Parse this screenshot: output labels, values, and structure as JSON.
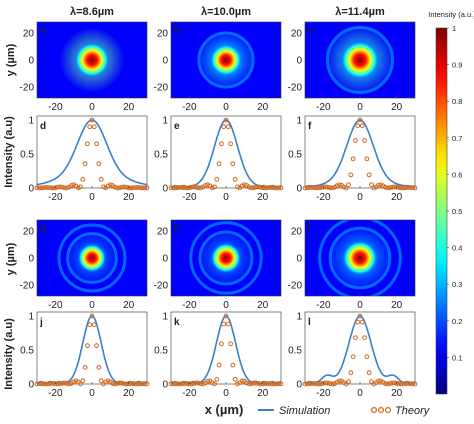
{
  "chart_data": {
    "type": "heatmap",
    "column_titles": [
      "λ=8.6µm",
      "λ=10.0µm",
      "λ=11.4µm"
    ],
    "title_color": "#2f6b2f",
    "image_panels": {
      "ylabel": "y (µm)",
      "y_ticks": [
        20,
        0,
        -20
      ],
      "x_ticks": [
        -20,
        0,
        20
      ],
      "panels": [
        {
          "label": "a",
          "row": 0,
          "col": 0,
          "spot_radius": 5.5,
          "halo": 0.35,
          "rings": 0,
          "peak": 1.0
        },
        {
          "label": "b",
          "row": 0,
          "col": 1,
          "spot_radius": 5.0,
          "halo": 0.25,
          "rings": 1,
          "peak": 1.0
        },
        {
          "label": "c",
          "row": 0,
          "col": 2,
          "spot_radius": 6.0,
          "halo": 0.3,
          "rings": 1,
          "peak": 1.0
        },
        {
          "label": "g",
          "row": 2,
          "col": 0,
          "spot_radius": 4.5,
          "halo": 0.15,
          "rings": 2,
          "peak": 1.0
        },
        {
          "label": "h",
          "row": 2,
          "col": 1,
          "spot_radius": 4.8,
          "halo": 0.15,
          "rings": 2,
          "peak": 1.0
        },
        {
          "label": "i",
          "row": 2,
          "col": 2,
          "spot_radius": 5.5,
          "halo": 0.2,
          "rings": 2,
          "peak": 1.0
        }
      ]
    },
    "line_panels": {
      "ylabel": "Intensity (a.u)",
      "y_ticks": [
        0,
        0.5,
        1
      ],
      "x_ticks": [
        -20,
        0,
        20
      ],
      "xlim": [
        -30,
        30
      ],
      "ylim": [
        0,
        1
      ],
      "panels": [
        {
          "label": "d",
          "row": 1,
          "col": 0,
          "sim_width": 7.5,
          "theory_width": 5.5,
          "sim_shoulder": 0.22
        },
        {
          "label": "e",
          "row": 1,
          "col": 1,
          "sim_width": 6.2,
          "theory_width": 5.5,
          "sim_shoulder": 0.04
        },
        {
          "label": "f",
          "row": 1,
          "col": 2,
          "sim_width": 7.0,
          "theory_width": 6.0,
          "sim_shoulder": 0.1
        },
        {
          "label": "j",
          "row": 3,
          "col": 0,
          "sim_width": 5.0,
          "theory_width": 4.8,
          "sim_shoulder": 0.0
        },
        {
          "label": "k",
          "row": 3,
          "col": 1,
          "sim_width": 5.2,
          "theory_width": 5.0,
          "sim_shoulder": 0.0
        },
        {
          "label": "l",
          "row": 3,
          "col": 2,
          "sim_width": 6.0,
          "theory_width": 5.8,
          "sim_shoulder": 0.0,
          "side_lobes": 0.12
        }
      ]
    },
    "xlabel": "x (µm)",
    "legend": {
      "simulation": "Simulation",
      "theory": "Theory",
      "simulation_color": "#3a7fd0",
      "theory_color": "#d2691e"
    },
    "colorbar": {
      "title": "Intensity (a.u.)",
      "ticks": [
        1,
        0.9,
        0.8,
        0.7,
        0.6,
        0.5,
        0.4,
        0.3,
        0.2,
        0.1
      ],
      "range": [
        0,
        1
      ]
    }
  }
}
